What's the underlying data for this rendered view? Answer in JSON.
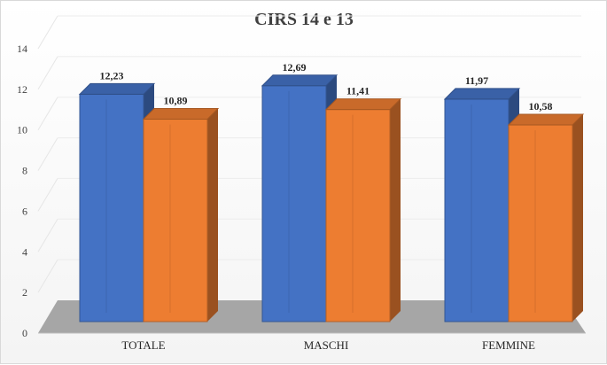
{
  "chart_data": {
    "type": "bar",
    "title": "CIRS 14 e 13",
    "categories": [
      "TOTALE",
      "MASCHI",
      "FEMMINE"
    ],
    "series": [
      {
        "values": [
          12.23,
          12.69,
          11.97
        ],
        "labels": [
          "12,23",
          "12,69",
          "11,97"
        ],
        "color": "#4472c4"
      },
      {
        "values": [
          10.89,
          11.41,
          10.58
        ],
        "labels": [
          "10,89",
          "11,41",
          "10,58"
        ],
        "color": "#ed7d31"
      }
    ],
    "ylim": [
      0,
      14
    ],
    "yticks": [
      0,
      2,
      4,
      6,
      8,
      10,
      12,
      14
    ],
    "grid": true,
    "legend": "none",
    "style": "3d-clustered-column"
  }
}
